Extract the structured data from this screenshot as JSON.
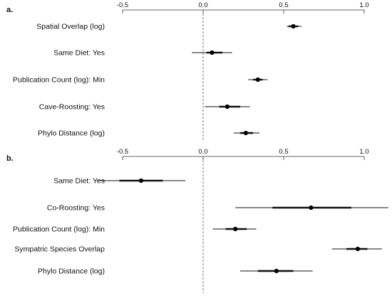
{
  "chart_data": [
    {
      "type": "forest",
      "panel_label": "a.",
      "xlim": [
        -0.5,
        1.0
      ],
      "ticks": [
        -0.5,
        0.0,
        0.5,
        1.0
      ],
      "tick_labels": [
        "-0.5",
        "0.0",
        "0.5",
        "1.0"
      ],
      "reference_line": 0,
      "rows": [
        {
          "label": "Spatial Overlap (log)",
          "est": 0.56,
          "inner": [
            0.53,
            0.59
          ],
          "outer": [
            0.52,
            0.61
          ]
        },
        {
          "label": "Same Diet: Yes",
          "est": 0.055,
          "inner": [
            0.02,
            0.12
          ],
          "outer": [
            -0.07,
            0.18
          ]
        },
        {
          "label": "Publication Count (log): Min",
          "est": 0.34,
          "inner": [
            0.31,
            0.37
          ],
          "outer": [
            0.28,
            0.4
          ]
        },
        {
          "label": "Cave-Roosting: Yes",
          "est": 0.15,
          "inner": [
            0.1,
            0.23
          ],
          "outer": [
            0.01,
            0.29
          ]
        },
        {
          "label": "Phylo Distance (log)",
          "est": 0.265,
          "inner": [
            0.23,
            0.31
          ],
          "outer": [
            0.19,
            0.35
          ]
        }
      ]
    },
    {
      "type": "forest",
      "panel_label": "b.",
      "xlim": [
        -0.5,
        1.0
      ],
      "ticks": [
        -0.5,
        0.0,
        0.5,
        1.0
      ],
      "tick_labels": [
        "-0.5",
        "0.0",
        "0.5",
        "1.0"
      ],
      "reference_line": 0,
      "rows": [
        {
          "label": "Same Diet: Yes",
          "est": -0.385,
          "inner": [
            -0.52,
            -0.25
          ],
          "outer": [
            -0.66,
            -0.11
          ]
        },
        {
          "label": "Co-Roosting: Yes",
          "est": 0.67,
          "inner": [
            0.43,
            0.92
          ],
          "outer": [
            0.2,
            1.15
          ]
        },
        {
          "label": "Publication Count (log): Min",
          "est": 0.2,
          "inner": [
            0.14,
            0.27
          ],
          "outer": [
            0.06,
            0.33
          ]
        },
        {
          "label": "Sympatric Species Overlap",
          "est": 0.96,
          "inner": [
            0.89,
            1.02
          ],
          "outer": [
            0.8,
            1.11
          ]
        },
        {
          "label": "Phylo Distance (log)",
          "est": 0.455,
          "inner": [
            0.34,
            0.56
          ],
          "outer": [
            0.23,
            0.68
          ]
        }
      ]
    }
  ]
}
